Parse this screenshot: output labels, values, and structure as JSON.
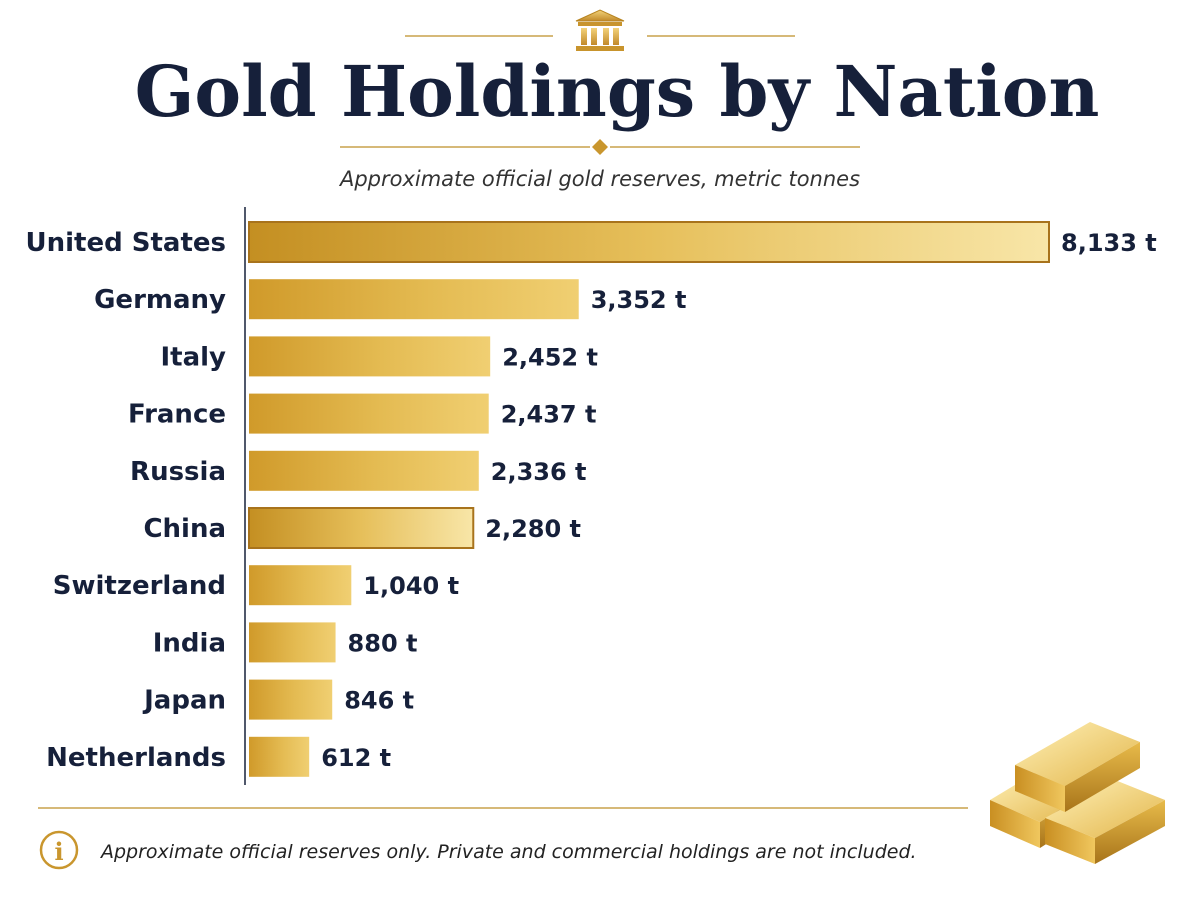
{
  "chart_data": {
    "type": "bar",
    "orientation": "horizontal",
    "title": "Gold Holdings by Nation",
    "subtitle": "Approximate official gold reserves, metric tonnes",
    "categories": [
      "United States",
      "Germany",
      "Italy",
      "France",
      "Russia",
      "China",
      "Switzerland",
      "India",
      "Japan",
      "Netherlands"
    ],
    "values": [
      8133,
      3352,
      2452,
      2437,
      2336,
      2280,
      1040,
      880,
      846,
      612
    ],
    "value_labels": [
      "8,133 t",
      "3,352 t",
      "2,452 t",
      "2,437 t",
      "2,336 t",
      "2,280 t",
      "1,040 t",
      "880 t",
      "846 t",
      "612 t"
    ],
    "highlighted": [
      "United States",
      "China"
    ],
    "xlabel": "",
    "ylabel": "",
    "grid": false,
    "legend": "none"
  },
  "footer": {
    "note": "Approximate official reserves only. Private and commercial holdings are not included."
  },
  "icons": {
    "header": "bank-building-icon",
    "info": "info-icon",
    "decoration": "gold-bars-icon"
  },
  "colors": {
    "gold": "#d9ab3b",
    "gold_light": "#f2d27a",
    "gold_dark": "#b78420",
    "navy": "#16203a",
    "rule": "#c9a24c"
  }
}
